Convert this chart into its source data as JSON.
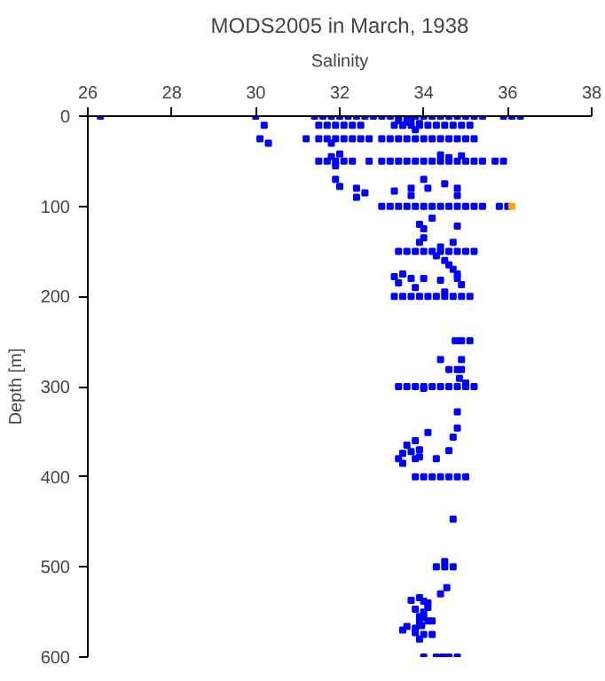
{
  "chart_data": {
    "type": "scatter",
    "title": "MODS2005 in March, 1938",
    "xlabel": "Salinity",
    "ylabel": "Depth [m]",
    "xlim": [
      26,
      38
    ],
    "xticks": [
      26,
      28,
      30,
      32,
      34,
      36,
      38
    ],
    "ylim": [
      600,
      0
    ],
    "yticks": [
      0,
      100,
      200,
      300,
      400,
      500,
      600
    ],
    "grid": false,
    "marker": "square",
    "series": [
      {
        "color": "#0000ff",
        "x": [
          31.4,
          31.6,
          31.8,
          32.0,
          32.2,
          32.4,
          32.6,
          32.8,
          33.0,
          33.2,
          33.4,
          33.6,
          33.8,
          34.0,
          34.2,
          34.4,
          34.6,
          34.8,
          35.0,
          35.2,
          35.4,
          26.3,
          30.0,
          35.9,
          36.1,
          36.3,
          33.4,
          33.6,
          33.8,
          33.9,
          33.5,
          33.7,
          31.5,
          31.7,
          31.9,
          32.1,
          32.3,
          32.5,
          33.3,
          33.5,
          33.7,
          33.9,
          34.1,
          34.3,
          34.5,
          34.7,
          34.9,
          35.1,
          30.2,
          31.2,
          31.5,
          31.7,
          31.9,
          32.1,
          32.3,
          32.5,
          32.7,
          33.0,
          33.2,
          33.4,
          33.6,
          33.8,
          34.0,
          34.2,
          34.4,
          34.6,
          34.8,
          35.0,
          35.2,
          30.1,
          30.3,
          31.8,
          31.5,
          31.7,
          31.9,
          32.1,
          32.3,
          32.7,
          33.0,
          33.2,
          33.4,
          33.6,
          33.8,
          34.0,
          34.2,
          34.4,
          34.6,
          34.8,
          35.0,
          35.2,
          35.4,
          35.7,
          35.9,
          31.8,
          31.9,
          32.0,
          34.4,
          34.9,
          34.6,
          31.9,
          32.0,
          32.4,
          32.4,
          33.3,
          33.7,
          34.1,
          33.7,
          34.0,
          34.5,
          34.8,
          34.8,
          32.6,
          33.0,
          33.2,
          33.4,
          33.6,
          33.8,
          34.0,
          34.2,
          34.4,
          34.6,
          34.8,
          35.0,
          35.2,
          35.4,
          35.8,
          36.0,
          33.9,
          34.0,
          34.2,
          34.8,
          34.0,
          33.9,
          34.4,
          34.7,
          34.3,
          34.5,
          34.6,
          34.7,
          34.8,
          33.4,
          33.6,
          33.8,
          34.0,
          34.2,
          34.4,
          34.6,
          34.8,
          35.0,
          35.2,
          33.3,
          33.4,
          33.5,
          33.7,
          33.8,
          34.0,
          34.4,
          34.8,
          34.9,
          34.5,
          33.3,
          33.5,
          33.7,
          33.9,
          34.1,
          34.3,
          34.5,
          34.7,
          34.9,
          35.1,
          34.75,
          34.9,
          35.1,
          34.4,
          34.9,
          34.6,
          34.8,
          34.9,
          34.85,
          35.0,
          33.4,
          33.6,
          33.8,
          34.0,
          34.2,
          34.4,
          34.6,
          34.8,
          35.0,
          35.2,
          34.0,
          34.8,
          34.8,
          34.7,
          34.6,
          34.1,
          33.8,
          33.6,
          33.4,
          33.5,
          33.7,
          33.9,
          33.8,
          33.9,
          33.5,
          34.3,
          33.8,
          34.0,
          34.2,
          34.4,
          34.6,
          34.8,
          35.0,
          34.7,
          34.5,
          34.3,
          34.5,
          34.7,
          34.55,
          34.4,
          33.7,
          33.9,
          34.0,
          34.1,
          34.1,
          34.0,
          33.8,
          33.9,
          34.0,
          34.1,
          33.9,
          34.2,
          33.8,
          33.95,
          33.6,
          33.5,
          34.0,
          33.8,
          34.2,
          33.9,
          34.0,
          34.3,
          34.45,
          34.6,
          34.8
        ],
        "values": [
          0,
          0,
          0,
          0,
          0,
          0,
          0,
          0,
          0,
          0,
          0,
          0,
          0,
          0,
          0,
          0,
          0,
          0,
          0,
          0,
          0,
          0,
          0,
          0,
          0,
          0,
          5,
          7,
          15,
          8,
          10,
          3,
          10,
          10,
          10,
          10,
          10,
          10,
          10,
          10,
          10,
          10,
          10,
          10,
          10,
          10,
          10,
          10,
          10,
          25,
          25,
          25,
          25,
          25,
          25,
          25,
          25,
          25,
          25,
          25,
          25,
          25,
          25,
          25,
          25,
          25,
          25,
          25,
          25,
          25,
          30,
          30,
          50,
          50,
          50,
          50,
          50,
          50,
          50,
          50,
          50,
          50,
          50,
          50,
          50,
          50,
          50,
          50,
          50,
          50,
          50,
          50,
          50,
          45,
          55,
          42,
          43,
          44,
          46,
          70,
          78,
          80,
          90,
          83,
          80,
          80,
          88,
          70,
          75,
          80,
          88,
          85,
          100,
          100,
          100,
          100,
          100,
          100,
          100,
          100,
          100,
          100,
          100,
          100,
          100,
          100,
          100,
          120,
          125,
          113,
          122,
          135,
          140,
          145,
          140,
          155,
          160,
          165,
          170,
          175,
          150,
          150,
          150,
          150,
          150,
          150,
          150,
          150,
          150,
          150,
          178,
          185,
          175,
          180,
          190,
          180,
          182,
          180,
          187,
          195,
          200,
          200,
          200,
          200,
          200,
          200,
          200,
          200,
          200,
          200,
          249,
          249,
          249,
          270,
          270,
          281,
          281,
          281,
          291,
          296,
          300,
          300,
          300,
          300,
          300,
          300,
          300,
          300,
          300,
          300,
          302,
          328,
          346,
          356,
          371,
          351,
          360,
          365,
          380,
          385,
          372,
          370,
          380,
          378,
          374,
          380,
          400,
          400,
          400,
          400,
          400,
          400,
          400,
          447,
          494,
          500,
          500,
          500,
          523,
          530,
          537,
          534,
          538,
          540,
          545,
          550,
          547,
          555,
          556,
          560,
          562,
          560,
          568,
          565,
          566,
          570,
          575,
          573,
          575,
          580,
          600,
          600,
          600,
          600,
          600
        ]
      },
      {
        "color": "#ffa500",
        "x": [
          36.1
        ],
        "values": [
          100
        ]
      }
    ]
  }
}
